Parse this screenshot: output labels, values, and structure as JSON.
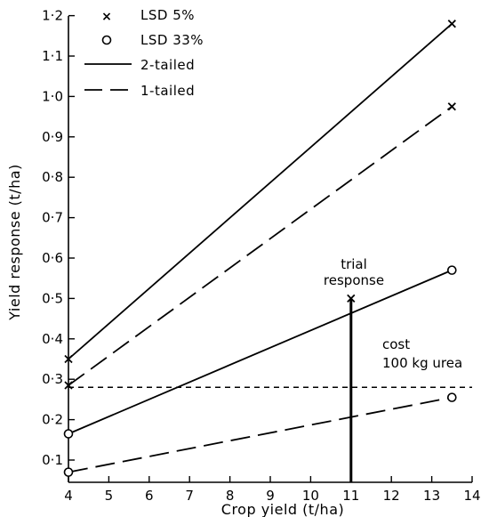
{
  "chart_data": {
    "type": "line",
    "title": "",
    "xlabel": "Crop yield  (t/ha)",
    "ylabel": "Yield response  (t/ha)",
    "xlim": [
      4,
      14
    ],
    "ylim": [
      0.05,
      1.2
    ],
    "x_ticks": [
      4,
      5,
      6,
      7,
      8,
      9,
      10,
      11,
      12,
      13,
      14
    ],
    "x_tick_labels": [
      "4",
      "5",
      "6",
      "7",
      "8",
      "9",
      "10",
      "11",
      "12",
      "13",
      "14"
    ],
    "y_ticks": [
      0.1,
      0.2,
      0.3,
      0.4,
      0.5,
      0.6,
      0.7,
      0.8,
      0.9,
      1.0,
      1.1,
      1.2
    ],
    "y_tick_labels": [
      "0·1",
      "0·2",
      "0·3",
      "0·4",
      "0·5",
      "0·6",
      "0·7",
      "0·8",
      "0·9",
      "1·0",
      "1·1",
      "1·2"
    ],
    "grid": false,
    "legend": {
      "placement": "top-left",
      "entries": [
        {
          "symbol": "x",
          "label": "LSD 5%"
        },
        {
          "symbol": "o",
          "label": "LSD 33%"
        },
        {
          "symbol": "solid-line",
          "label": "2-tailed"
        },
        {
          "symbol": "dashed-line",
          "label": "1-tailed"
        }
      ]
    },
    "series": [
      {
        "marker": "x",
        "style": "solid",
        "x": [
          4,
          13.5
        ],
        "y": [
          0.35,
          1.18
        ]
      },
      {
        "marker": "x",
        "style": "dashed",
        "x": [
          4,
          13.5
        ],
        "y": [
          0.285,
          0.975
        ]
      },
      {
        "marker": "o",
        "style": "solid",
        "x": [
          4,
          13.5
        ],
        "y": [
          0.165,
          0.57
        ]
      },
      {
        "marker": "o",
        "style": "dashed",
        "x": [
          4,
          13.5
        ],
        "y": [
          0.07,
          0.255
        ]
      }
    ],
    "cost_line": {
      "y": 0.28,
      "style": "dotted-dashed",
      "label_line1": "cost",
      "label_line2": "100 kg urea"
    },
    "trial_response": {
      "x": 11,
      "y": 0.5,
      "label_line1": "trial",
      "label_line2": "response"
    }
  }
}
